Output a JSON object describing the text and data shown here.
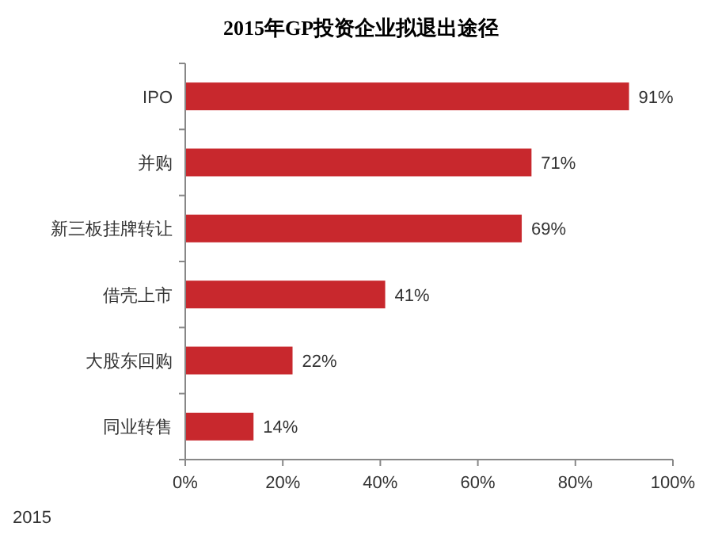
{
  "chart_data": {
    "type": "bar",
    "orientation": "horizontal",
    "title": "2015年GP投资企业拟退出途径",
    "categories": [
      "IPO",
      "并购",
      "新三板挂牌转让",
      "借壳上市",
      "大股东回购",
      "同业转售"
    ],
    "values": [
      91,
      71,
      69,
      41,
      22,
      14
    ],
    "value_labels": [
      "91%",
      "71%",
      "69%",
      "41%",
      "22%",
      "14%"
    ],
    "color": "#c8282d",
    "xlim": [
      0,
      100
    ],
    "xticks": [
      {
        "value": 0,
        "label": "0%"
      },
      {
        "value": 20,
        "label": "20%"
      },
      {
        "value": 40,
        "label": "40%"
      },
      {
        "value": 60,
        "label": "60%"
      },
      {
        "value": 80,
        "label": "80%"
      },
      {
        "value": 100,
        "label": "100%"
      }
    ],
    "grid": false,
    "annotations": [
      "2015"
    ]
  }
}
